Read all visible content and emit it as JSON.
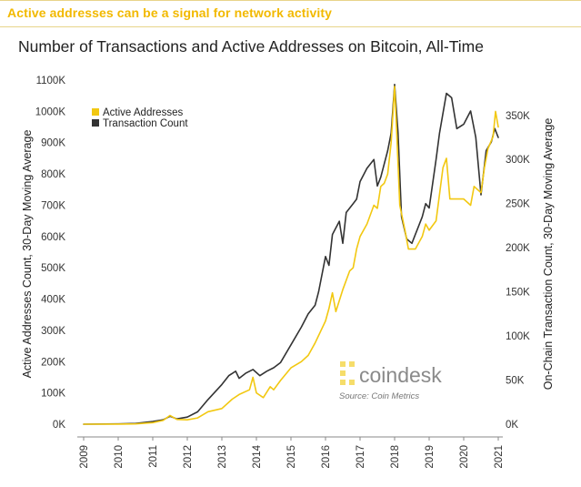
{
  "headline": "Active addresses can be a signal for network activity",
  "watermark": {
    "brand": "coindesk",
    "source": "Source: Coin Metrics"
  },
  "colors": {
    "accent": "#f2b900",
    "active_addresses": "#f2c811",
    "transaction_count": "#333333"
  },
  "chart_data": {
    "type": "line",
    "title": "Number of Transactions and Active Addresses on Bitcoin, All-Time",
    "ylabel": "Active Addresses Count, 30-Day Moving Average",
    "y2label": "On-Chain Transaction Count, 30-Day Moving Average",
    "xlabel": "",
    "xlim": [
      2009,
      2021
    ],
    "ylim": [
      0,
      1100000
    ],
    "y2lim": [
      0,
      390000
    ],
    "x_ticks": [
      "2009",
      "2010",
      "2011",
      "2012",
      "2013",
      "2014",
      "2015",
      "2016",
      "2017",
      "2018",
      "2019",
      "2020",
      "2021"
    ],
    "y_ticks": [
      "0K",
      "100K",
      "200K",
      "300K",
      "400K",
      "500K",
      "600K",
      "700K",
      "800K",
      "900K",
      "1000K",
      "1100K"
    ],
    "y2_ticks": [
      "0K",
      "50K",
      "100K",
      "150K",
      "200K",
      "250K",
      "300K",
      "350K"
    ],
    "legend_position": "top-left",
    "grid": false,
    "series": [
      {
        "name": "Active Addresses",
        "axis": "left",
        "points": [
          [
            2009.0,
            0
          ],
          [
            2010.0,
            300
          ],
          [
            2010.5,
            1000
          ],
          [
            2011.0,
            5000
          ],
          [
            2011.3,
            12000
          ],
          [
            2011.5,
            28000
          ],
          [
            2011.7,
            15000
          ],
          [
            2012.0,
            14000
          ],
          [
            2012.3,
            20000
          ],
          [
            2012.6,
            40000
          ],
          [
            2013.0,
            50000
          ],
          [
            2013.3,
            80000
          ],
          [
            2013.5,
            95000
          ],
          [
            2013.8,
            110000
          ],
          [
            2013.9,
            150000
          ],
          [
            2014.0,
            100000
          ],
          [
            2014.2,
            85000
          ],
          [
            2014.4,
            120000
          ],
          [
            2014.5,
            110000
          ],
          [
            2014.7,
            140000
          ],
          [
            2015.0,
            180000
          ],
          [
            2015.3,
            200000
          ],
          [
            2015.5,
            220000
          ],
          [
            2015.7,
            260000
          ],
          [
            2016.0,
            330000
          ],
          [
            2016.1,
            370000
          ],
          [
            2016.2,
            420000
          ],
          [
            2016.3,
            360000
          ],
          [
            2016.5,
            430000
          ],
          [
            2016.7,
            490000
          ],
          [
            2016.8,
            500000
          ],
          [
            2016.9,
            560000
          ],
          [
            2017.0,
            600000
          ],
          [
            2017.2,
            640000
          ],
          [
            2017.4,
            700000
          ],
          [
            2017.5,
            690000
          ],
          [
            2017.6,
            760000
          ],
          [
            2017.7,
            770000
          ],
          [
            2017.8,
            800000
          ],
          [
            2017.9,
            900000
          ],
          [
            2018.0,
            1080000
          ],
          [
            2018.05,
            960000
          ],
          [
            2018.15,
            700000
          ],
          [
            2018.3,
            620000
          ],
          [
            2018.4,
            560000
          ],
          [
            2018.6,
            560000
          ],
          [
            2018.8,
            600000
          ],
          [
            2018.9,
            640000
          ],
          [
            2019.0,
            620000
          ],
          [
            2019.2,
            650000
          ],
          [
            2019.4,
            820000
          ],
          [
            2019.5,
            850000
          ],
          [
            2019.6,
            720000
          ],
          [
            2019.8,
            720000
          ],
          [
            2020.0,
            720000
          ],
          [
            2020.2,
            700000
          ],
          [
            2020.3,
            760000
          ],
          [
            2020.5,
            740000
          ],
          [
            2020.6,
            820000
          ],
          [
            2020.7,
            880000
          ],
          [
            2020.85,
            920000
          ],
          [
            2020.92,
            1000000
          ],
          [
            2021.0,
            950000
          ]
        ]
      },
      {
        "name": "Transaction Count",
        "axis": "right",
        "points": [
          [
            2009.0,
            0
          ],
          [
            2010.0,
            300
          ],
          [
            2010.5,
            800
          ],
          [
            2011.0,
            3000
          ],
          [
            2011.3,
            5000
          ],
          [
            2011.5,
            9000
          ],
          [
            2011.7,
            6000
          ],
          [
            2012.0,
            8000
          ],
          [
            2012.3,
            14000
          ],
          [
            2012.6,
            28000
          ],
          [
            2013.0,
            45000
          ],
          [
            2013.2,
            55000
          ],
          [
            2013.4,
            60000
          ],
          [
            2013.5,
            52000
          ],
          [
            2013.7,
            58000
          ],
          [
            2013.9,
            62000
          ],
          [
            2014.1,
            55000
          ],
          [
            2014.3,
            60000
          ],
          [
            2014.5,
            64000
          ],
          [
            2014.7,
            70000
          ],
          [
            2015.0,
            90000
          ],
          [
            2015.3,
            110000
          ],
          [
            2015.5,
            125000
          ],
          [
            2015.7,
            135000
          ],
          [
            2015.8,
            150000
          ],
          [
            2016.0,
            190000
          ],
          [
            2016.1,
            180000
          ],
          [
            2016.2,
            215000
          ],
          [
            2016.4,
            230000
          ],
          [
            2016.5,
            205000
          ],
          [
            2016.6,
            240000
          ],
          [
            2016.8,
            250000
          ],
          [
            2016.9,
            255000
          ],
          [
            2017.0,
            275000
          ],
          [
            2017.2,
            290000
          ],
          [
            2017.4,
            300000
          ],
          [
            2017.5,
            270000
          ],
          [
            2017.6,
            280000
          ],
          [
            2017.8,
            310000
          ],
          [
            2017.9,
            330000
          ],
          [
            2018.0,
            385000
          ],
          [
            2018.1,
            330000
          ],
          [
            2018.2,
            235000
          ],
          [
            2018.35,
            210000
          ],
          [
            2018.5,
            205000
          ],
          [
            2018.6,
            215000
          ],
          [
            2018.8,
            235000
          ],
          [
            2018.9,
            250000
          ],
          [
            2019.0,
            245000
          ],
          [
            2019.2,
            300000
          ],
          [
            2019.3,
            330000
          ],
          [
            2019.5,
            375000
          ],
          [
            2019.65,
            370000
          ],
          [
            2019.8,
            335000
          ],
          [
            2020.0,
            340000
          ],
          [
            2020.2,
            355000
          ],
          [
            2020.35,
            325000
          ],
          [
            2020.5,
            260000
          ],
          [
            2020.65,
            310000
          ],
          [
            2020.8,
            320000
          ],
          [
            2020.9,
            335000
          ],
          [
            2021.0,
            325000
          ]
        ]
      }
    ]
  }
}
